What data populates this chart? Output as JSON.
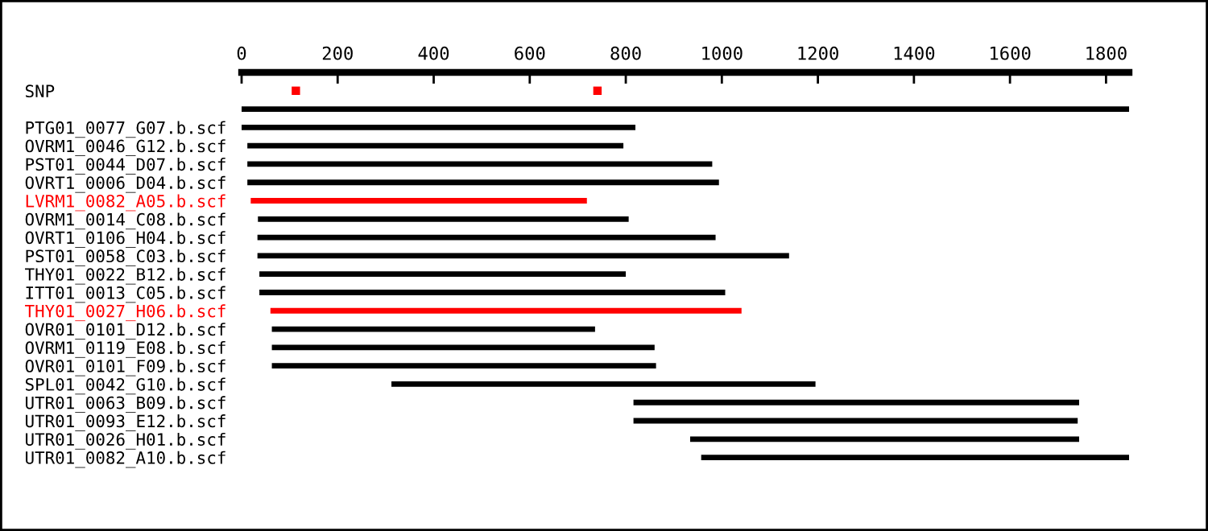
{
  "chart_data": {
    "type": "bar",
    "orientation": "horizontal",
    "categories": [
      "SNP",
      null,
      "PTG01_0077_G07.b.scf",
      "OVRM1_0046_G12.b.scf",
      "PST01_0044_D07.b.scf",
      "OVRT1_0006_D04.b.scf",
      "LVRM1_0082_A05.b.scf",
      "OVRM1_0014_C08.b.scf",
      "OVRT1_0106_H04.b.scf",
      "PST01_0058_C03.b.scf",
      "THY01_0022_B12.b.scf",
      "ITT01_0013_C05.b.scf",
      "THY01_0027_H06.b.scf",
      "OVR01_0101_D12.b.scf",
      "OVRM1_0119_E08.b.scf",
      "OVR01_0101_F09.b.scf",
      "SPL01_0042_G10.b.scf",
      "UTR01_0063_B09.b.scf",
      "UTR01_0093_E12.b.scf",
      "UTR01_0026_H01.b.scf",
      "UTR01_0082_A10.b.scf"
    ],
    "series": [
      {
        "base": [
          null,
          0,
          0,
          12,
          12,
          12,
          19,
          34,
          33,
          33,
          37,
          37,
          60,
          63,
          63,
          63,
          312,
          816,
          816,
          934,
          957
        ],
        "values": [
          null,
          1848,
          820,
          783,
          968,
          982,
          700,
          772,
          954,
          1107,
          763,
          970,
          981,
          673,
          797,
          800,
          883,
          928,
          925,
          810,
          894
        ],
        "colors": [
          "#000000",
          "#000000",
          "#000000",
          "#000000",
          "#000000",
          "#000000",
          "#ff0000",
          "#000000",
          "#000000",
          "#000000",
          "#000000",
          "#000000",
          "#ff0000",
          "#000000",
          "#000000",
          "#000000",
          "#000000",
          "#000000",
          "#000000",
          "#000000",
          "#000000"
        ]
      },
      {
        "type": "scatter",
        "x": [
          "SNP",
          "SNP"
        ],
        "values": [
          113,
          741
        ],
        "color": "#ff0000",
        "marker": "square"
      }
    ],
    "xlim": [
      0,
      1848
    ],
    "xticks": [
      0,
      200,
      400,
      600,
      800,
      1000,
      1200,
      1400,
      1600,
      1800
    ],
    "grid": false,
    "legend": false
  }
}
